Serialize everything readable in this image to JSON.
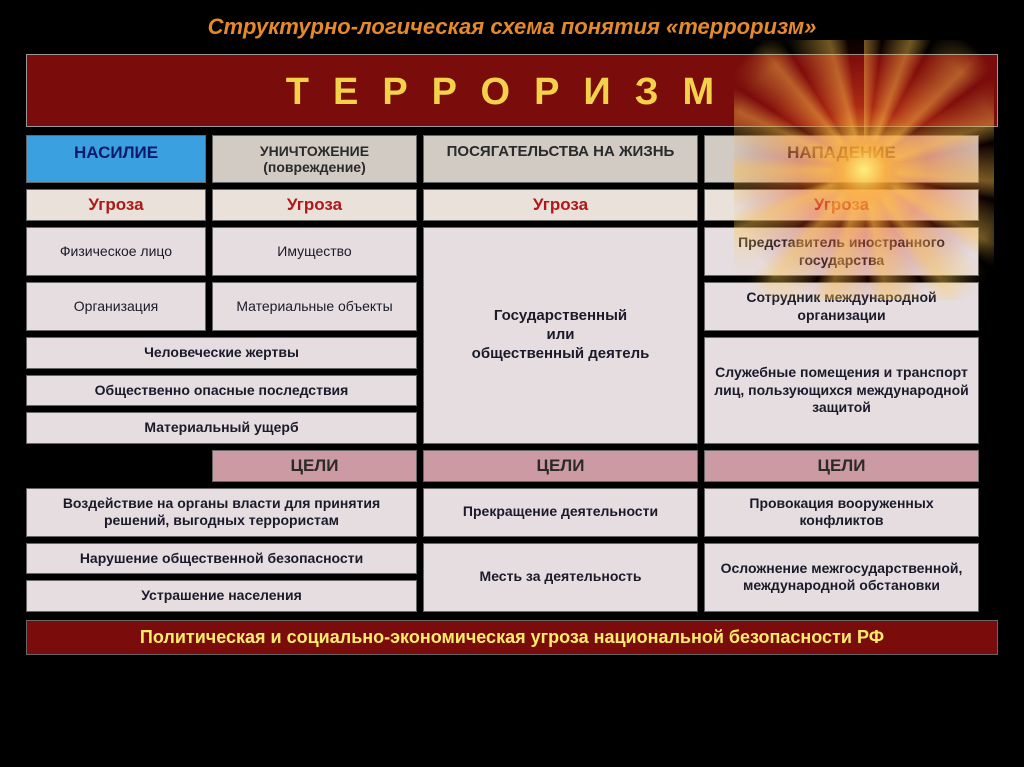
{
  "colors": {
    "page_bg": "#000000",
    "title": "#e58a2b",
    "banner_bg": "#7a0c0c",
    "banner_text": "#f3d24a",
    "cat1_bg": "#3aa0e0",
    "cat1_text": "#0a1a6a",
    "cat_other_bg": "#d2cbc4",
    "cat_other_text": "#2a2a2a",
    "threat_bg": "#eae2da",
    "threat_text": "#b01818",
    "cell_bg": "#e6dde0",
    "cell_text": "#1a1a2a",
    "goals_bg": "#cc9aa2",
    "goals_text": "#2a2a2a",
    "footer_bg": "#7a0c0c",
    "footer_text": "#ffec6a"
  },
  "title": "Структурно-логическая схема понятия «терроризм»",
  "banner": "ТЕРРОРИЗМ",
  "categories": [
    "НАСИЛИЕ",
    "УНИЧТОЖЕНИЕ (повреждение)",
    "ПОСЯГАТЕЛЬСТВА НА ЖИЗНЬ",
    "НАПАДЕНИЕ"
  ],
  "threat_label": "Угроза",
  "col1": {
    "rows": [
      "Физическое лицо",
      "Организация"
    ]
  },
  "col2": {
    "rows": [
      "Имущество",
      "Материальные объекты"
    ]
  },
  "col12_merged": [
    "Человеческие жертвы",
    "Общественно опасные последствия",
    "Материальный ущерб"
  ],
  "col3": {
    "rows": [
      "Государственный\nили\nобщественный деятель"
    ]
  },
  "col4": {
    "rows": [
      "Представитель иностранного государства",
      "Сотрудник международной организации",
      "Служебные помещения и транспорт лиц, пользующихся международной защитой"
    ]
  },
  "goals_label": "ЦЕЛИ",
  "goals": {
    "col12": [
      "Воздействие на органы власти для принятия решений, выгодных террористам",
      "Нарушение общественной безопасности",
      "Устрашение населения"
    ],
    "col3": [
      "Прекращение деятельности",
      "Месть за деятельность"
    ],
    "col4": [
      "Провокация вооруженных конфликтов",
      "Осложнение межгосударственной, международной обстановки"
    ]
  },
  "footer": "Политическая и социально-экономическая угроза национальной безопасности РФ"
}
